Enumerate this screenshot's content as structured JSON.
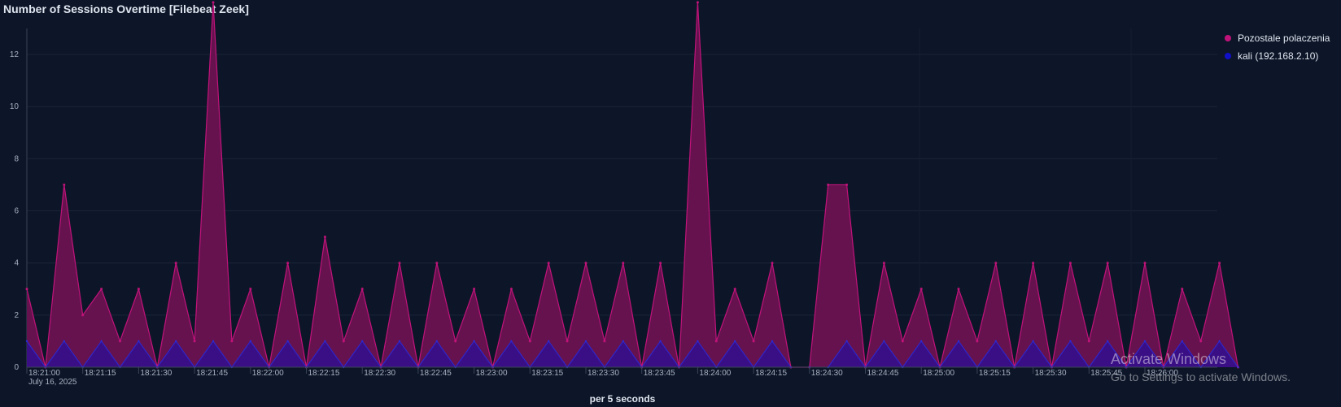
{
  "title": "Number of Sessions Overtime [Filebeat Zeek]",
  "legend": [
    {
      "label": "Pozostale polaczenia",
      "color": "#c0137a"
    },
    {
      "label": "kali (192.168.2.10)",
      "color": "#1010c8"
    }
  ],
  "watermark": {
    "title": "Activate Windows",
    "subtitle": "Go to Settings to activate Windows."
  },
  "chart_data": {
    "type": "area",
    "stacked": true,
    "title": "Number of Sessions Overtime [Filebeat Zeek]",
    "xlabel": "per 5 seconds",
    "date_label": "July 16, 2025",
    "ylim": [
      0,
      13
    ],
    "yticks": [
      0,
      2,
      4,
      6,
      8,
      10,
      12
    ],
    "xtick_labels": [
      "18:21:00",
      "18:21:15",
      "18:21:30",
      "18:21:45",
      "18:22:00",
      "18:22:15",
      "18:22:30",
      "18:22:45",
      "18:23:00",
      "18:23:15",
      "18:23:30",
      "18:23:45",
      "18:24:00",
      "18:24:15",
      "18:24:30",
      "18:24:45",
      "18:25:00",
      "18:25:15",
      "18:25:30",
      "18:25:45",
      "18:26:00"
    ],
    "x_start": "18:21:00",
    "interval_seconds": 5,
    "series": [
      {
        "name": "Pozostale polaczenia",
        "color": "#c0137a",
        "values": [
          2,
          0,
          6,
          2,
          2,
          1,
          2,
          0,
          3,
          1,
          13,
          1,
          2,
          0,
          3,
          0,
          4,
          1,
          2,
          0,
          3,
          0,
          3,
          1,
          2,
          0,
          2,
          1,
          3,
          1,
          3,
          1,
          3,
          0,
          3,
          0,
          13,
          1,
          2,
          1,
          3,
          0,
          0,
          7,
          6,
          0,
          3,
          1,
          2,
          0,
          2,
          1,
          3,
          0,
          3,
          0,
          3,
          1,
          3,
          0,
          3,
          0,
          2,
          1,
          3,
          0
        ]
      },
      {
        "name": "kali (192.168.2.10)",
        "color": "#1010c8",
        "values": [
          1,
          0,
          1,
          0,
          1,
          0,
          1,
          0,
          1,
          0,
          1,
          0,
          1,
          0,
          1,
          0,
          1,
          0,
          1,
          0,
          1,
          0,
          1,
          0,
          1,
          0,
          1,
          0,
          1,
          0,
          1,
          0,
          1,
          0,
          1,
          0,
          1,
          0,
          1,
          0,
          1,
          0,
          0,
          0,
          1,
          0,
          1,
          0,
          1,
          0,
          1,
          0,
          1,
          0,
          1,
          0,
          1,
          0,
          1,
          0,
          1,
          0,
          1,
          0,
          1,
          0
        ]
      }
    ]
  }
}
